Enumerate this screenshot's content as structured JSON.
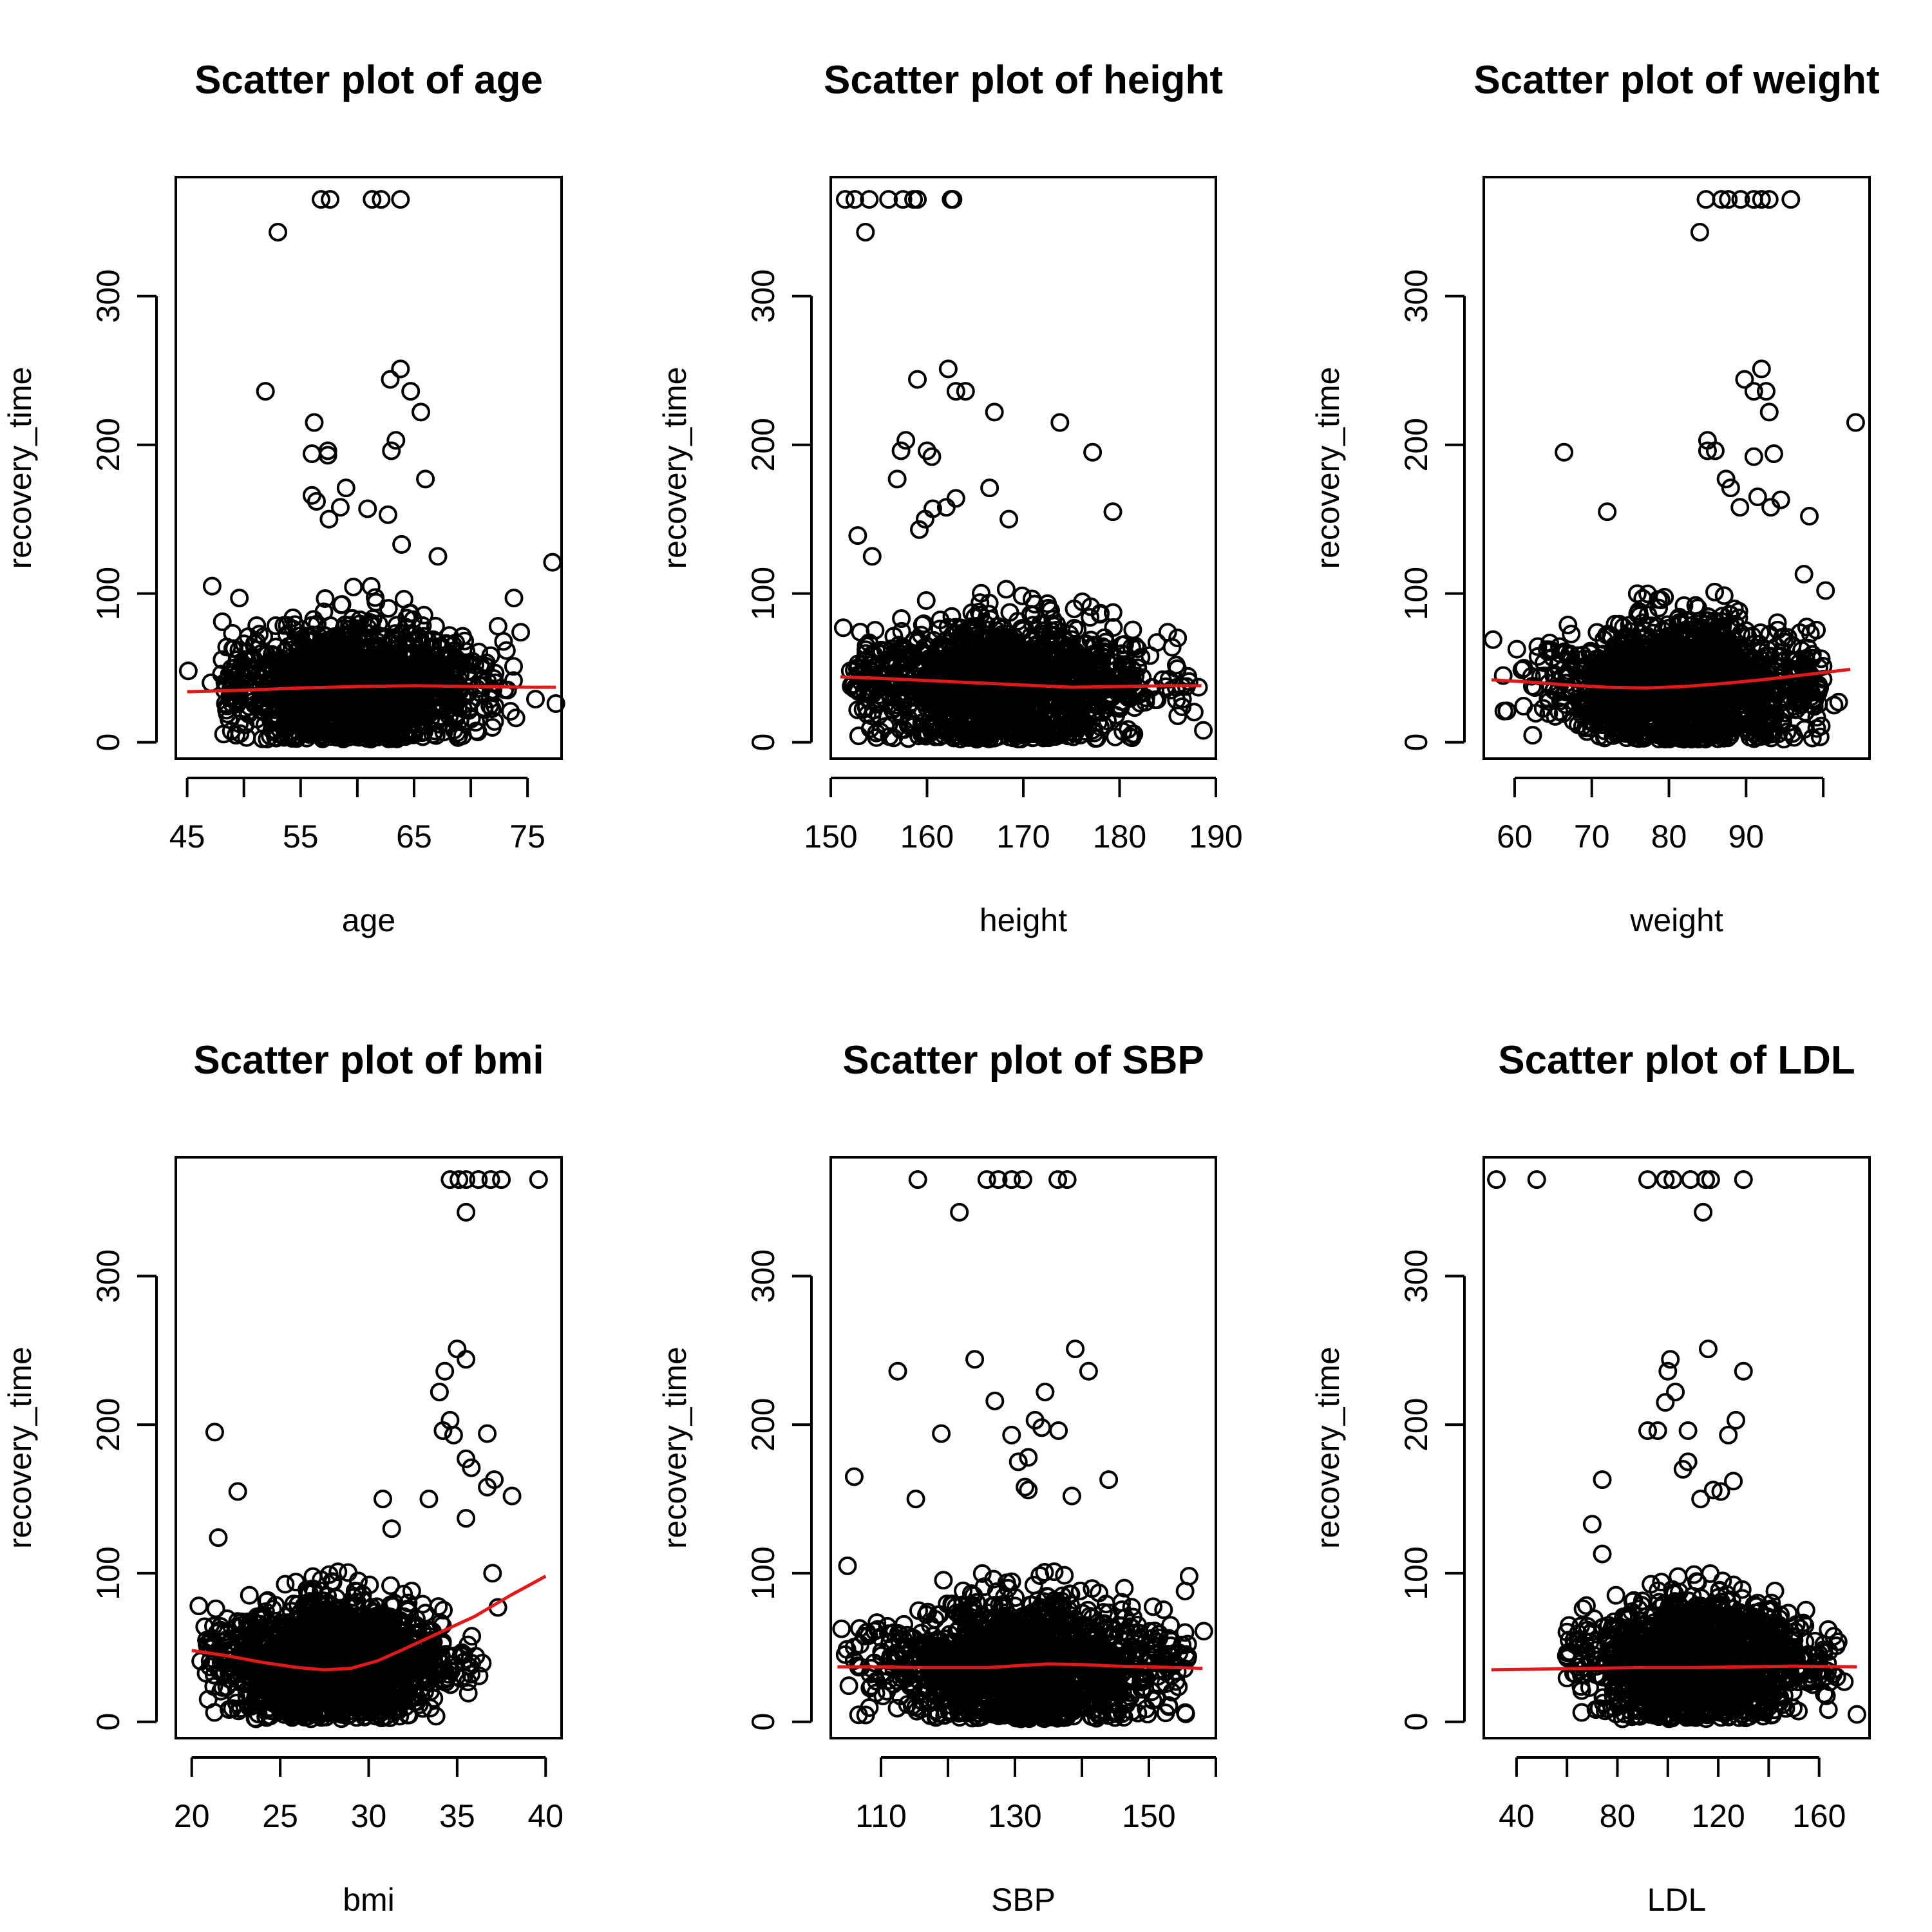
{
  "colors": {
    "points": "#000000",
    "smoother": "#e0191b",
    "frame": "#000000",
    "background": "#ffffff"
  },
  "chart_data": [
    {
      "type": "scatter",
      "title": "Scatter plot of age",
      "xlabel": "age",
      "ylabel": "recovery_time",
      "xlim": [
        44,
        78
      ],
      "ylim": [
        -11,
        380
      ],
      "xticks": [
        45,
        50,
        55,
        60,
        65,
        70,
        75
      ],
      "xticklabels": [
        "45",
        "",
        "55",
        "",
        "65",
        "",
        "75"
      ],
      "yticks": [
        0,
        100,
        200,
        300
      ],
      "yticklabels": [
        "0",
        "100",
        "200",
        "300"
      ],
      "outliers": [
        [
          53,
          343
        ],
        [
          56.8,
          365
        ],
        [
          57.6,
          365
        ],
        [
          61.3,
          365
        ],
        [
          62.1,
          365
        ],
        [
          63.8,
          365
        ],
        [
          51.9,
          236
        ],
        [
          62.9,
          244
        ],
        [
          63.8,
          251
        ],
        [
          64.7,
          236
        ],
        [
          65.6,
          222
        ],
        [
          63.4,
          203
        ],
        [
          63.0,
          196
        ],
        [
          66.0,
          177
        ],
        [
          56.2,
          215
        ],
        [
          56.0,
          194
        ],
        [
          57.4,
          196
        ],
        [
          57.4,
          193
        ],
        [
          56.0,
          166
        ],
        [
          56.4,
          162
        ],
        [
          59.0,
          171
        ],
        [
          60.9,
          157
        ],
        [
          62.7,
          153
        ],
        [
          57.5,
          150
        ],
        [
          58.5,
          158
        ],
        [
          63.9,
          133
        ],
        [
          77.2,
          121
        ],
        [
          67.1,
          125
        ],
        [
          49.6,
          97
        ],
        [
          48.1,
          81
        ],
        [
          47.2,
          105
        ],
        [
          73.8,
          97
        ],
        [
          74.4,
          74
        ],
        [
          72.4,
          78
        ],
        [
          71.7,
          29
        ],
        [
          71.9,
          10
        ],
        [
          72.1,
          14
        ],
        [
          75.7,
          29
        ],
        [
          77.5,
          26
        ],
        [
          47.1,
          40
        ],
        [
          45.1,
          48
        ]
      ],
      "cloud": {
        "x": [
          48,
          74
        ],
        "y_center": 38,
        "y_spread": [
          2,
          110
        ],
        "n": 1400,
        "x_peak": 60
      },
      "smoother": {
        "x": [
          45,
          50,
          55,
          60,
          65,
          70,
          75,
          77.5
        ],
        "y": [
          34,
          35,
          36.5,
          37.5,
          38,
          37.5,
          37,
          37
        ]
      }
    },
    {
      "type": "scatter",
      "title": "Scatter plot of height",
      "xlabel": "height",
      "ylabel": "recovery_time",
      "xlim": [
        150,
        190
      ],
      "ylim": [
        -11,
        380
      ],
      "xticks": [
        150,
        160,
        170,
        180,
        190
      ],
      "xticklabels": [
        "150",
        "160",
        "170",
        "180",
        "190"
      ],
      "yticks": [
        0,
        100,
        200,
        300
      ],
      "yticklabels": [
        "0",
        "100",
        "200",
        "300"
      ],
      "outliers": [
        [
          151.5,
          365
        ],
        [
          152.5,
          365
        ],
        [
          154.0,
          365
        ],
        [
          156.0,
          365
        ],
        [
          157.5,
          365
        ],
        [
          158.6,
          365
        ],
        [
          159.0,
          365
        ],
        [
          162.5,
          365
        ],
        [
          162.7,
          365
        ],
        [
          153.6,
          343
        ],
        [
          162.2,
          251
        ],
        [
          159.0,
          244
        ],
        [
          163.0,
          236
        ],
        [
          164.0,
          236
        ],
        [
          167.0,
          222
        ],
        [
          173.8,
          215
        ],
        [
          157.8,
          203
        ],
        [
          157.3,
          196
        ],
        [
          160.0,
          196
        ],
        [
          160.5,
          192
        ],
        [
          166.5,
          171
        ],
        [
          177.2,
          195
        ],
        [
          156.9,
          177
        ],
        [
          162.0,
          158
        ],
        [
          163.0,
          164
        ],
        [
          160.6,
          157
        ],
        [
          159.8,
          150
        ],
        [
          159.2,
          143
        ],
        [
          179.3,
          155
        ],
        [
          168.5,
          150
        ],
        [
          152.8,
          139
        ],
        [
          154.3,
          125
        ],
        [
          151.3,
          77
        ],
        [
          188.7,
          8
        ],
        [
          188.2,
          37
        ],
        [
          181.3,
          3
        ],
        [
          185.0,
          74
        ]
      ],
      "cloud": {
        "x": [
          152,
          188
        ],
        "y_center": 38,
        "y_spread": [
          2,
          118
        ],
        "n": 1400,
        "x_peak": 168
      },
      "smoother": {
        "x": [
          151,
          155,
          160,
          165,
          170,
          175,
          180,
          185,
          188.5
        ],
        "y": [
          44,
          43,
          41.5,
          40,
          38.5,
          37,
          37.5,
          38,
          38
        ]
      }
    },
    {
      "type": "scatter",
      "title": "Scatter plot of weight",
      "xlabel": "weight",
      "ylabel": "recovery_time",
      "xlim": [
        56,
        106
      ],
      "ylim": [
        -11,
        380
      ],
      "xticks": [
        60,
        70,
        80,
        90,
        100
      ],
      "xticklabels": [
        "60",
        "70",
        "80",
        "90",
        ""
      ],
      "yticks": [
        0,
        100,
        200,
        300
      ],
      "yticklabels": [
        "0",
        "100",
        "200",
        "300"
      ],
      "outliers": [
        [
          84.8,
          365
        ],
        [
          86.8,
          365
        ],
        [
          87.7,
          365
        ],
        [
          89.3,
          365
        ],
        [
          91.0,
          365
        ],
        [
          92.0,
          365
        ],
        [
          93.0,
          365
        ],
        [
          95.8,
          365
        ],
        [
          84.0,
          343
        ],
        [
          92.0,
          251
        ],
        [
          89.8,
          244
        ],
        [
          91.0,
          236
        ],
        [
          92.6,
          236
        ],
        [
          93.0,
          222
        ],
        [
          104.2,
          215
        ],
        [
          66.4,
          195
        ],
        [
          85.0,
          203
        ],
        [
          85.0,
          196
        ],
        [
          86.0,
          196
        ],
        [
          91.0,
          192
        ],
        [
          93.6,
          194
        ],
        [
          87.4,
          177
        ],
        [
          88.0,
          171
        ],
        [
          91.5,
          165
        ],
        [
          94.5,
          163
        ],
        [
          93.2,
          158
        ],
        [
          89.2,
          158
        ],
        [
          98.2,
          152
        ],
        [
          72.0,
          155
        ],
        [
          97.5,
          113
        ],
        [
          100.3,
          102
        ],
        [
          57.2,
          69
        ],
        [
          58.6,
          21
        ],
        [
          102.0,
          27
        ],
        [
          101.4,
          25
        ]
      ],
      "cloud": {
        "x": [
          58,
          100
        ],
        "y_center": 38,
        "y_spread": [
          2,
          118
        ],
        "n": 1400,
        "x_peak": 82
      },
      "smoother": {
        "x": [
          57,
          62,
          67,
          72,
          77,
          82,
          87,
          92,
          97,
          103.5
        ],
        "y": [
          42,
          40.5,
          38.5,
          37,
          36.5,
          37.5,
          39.5,
          42,
          45,
          49
        ]
      }
    },
    {
      "type": "scatter",
      "title": "Scatter plot of bmi",
      "xlabel": "bmi",
      "ylabel": "recovery_time",
      "xlim": [
        19.1,
        40.9
      ],
      "ylim": [
        -11,
        380
      ],
      "xticks": [
        20,
        25,
        30,
        35,
        40
      ],
      "xticklabels": [
        "20",
        "25",
        "30",
        "35",
        "40"
      ],
      "yticks": [
        0,
        100,
        200,
        300
      ],
      "yticklabels": [
        "0",
        "100",
        "200",
        "300"
      ],
      "outliers": [
        [
          34.6,
          365
        ],
        [
          35.1,
          365
        ],
        [
          35.5,
          365
        ],
        [
          36.2,
          365
        ],
        [
          36.9,
          365
        ],
        [
          37.5,
          365
        ],
        [
          39.6,
          365
        ],
        [
          35.5,
          343
        ],
        [
          35.0,
          251
        ],
        [
          35.5,
          244
        ],
        [
          34.3,
          236
        ],
        [
          34.0,
          222
        ],
        [
          34.6,
          203
        ],
        [
          34.2,
          196
        ],
        [
          36.7,
          194
        ],
        [
          34.8,
          193
        ],
        [
          35.5,
          177
        ],
        [
          35.8,
          171
        ],
        [
          37.1,
          163
        ],
        [
          36.7,
          158
        ],
        [
          38.1,
          152
        ],
        [
          35.5,
          137
        ],
        [
          37.0,
          100
        ],
        [
          37.3,
          77
        ],
        [
          21.3,
          195
        ],
        [
          22.6,
          155
        ],
        [
          21.5,
          124
        ],
        [
          20.4,
          78
        ],
        [
          30.8,
          150
        ],
        [
          31.3,
          130
        ],
        [
          33.4,
          150
        ]
      ],
      "cloud": {
        "x": [
          20.5,
          36.5
        ],
        "y_center": 40,
        "y_spread": [
          2,
          115
        ],
        "n": 1400,
        "x_peak": 28
      },
      "smoother": {
        "x": [
          20,
          22,
          24,
          26,
          27.5,
          29,
          30.5,
          32,
          34,
          36,
          38,
          40
        ],
        "y": [
          48,
          44.5,
          40,
          36.5,
          35,
          36,
          41,
          49,
          60,
          71,
          85,
          98
        ]
      }
    },
    {
      "type": "scatter",
      "title": "Scatter plot of SBP",
      "xlabel": "SBP",
      "ylabel": "recovery_time",
      "xlim": [
        102.5,
        160
      ],
      "ylim": [
        -11,
        380
      ],
      "xticks": [
        110,
        120,
        130,
        140,
        150,
        160
      ],
      "xticklabels": [
        "110",
        "",
        "130",
        "",
        "150",
        ""
      ],
      "yticks": [
        0,
        100,
        200,
        300
      ],
      "yticklabels": [
        "0",
        "100",
        "200",
        "300"
      ],
      "outliers": [
        [
          115.5,
          365
        ],
        [
          125.8,
          365
        ],
        [
          127.5,
          365
        ],
        [
          129.5,
          365
        ],
        [
          131.2,
          365
        ],
        [
          136.4,
          365
        ],
        [
          137.8,
          365
        ],
        [
          121.7,
          343
        ],
        [
          139.0,
          251
        ],
        [
          124.0,
          244
        ],
        [
          112.5,
          236
        ],
        [
          141.0,
          236
        ],
        [
          134.5,
          222
        ],
        [
          127.0,
          216
        ],
        [
          133.0,
          203
        ],
        [
          134.0,
          198
        ],
        [
          136.5,
          196
        ],
        [
          129.5,
          193
        ],
        [
          119.0,
          194
        ],
        [
          130.5,
          175
        ],
        [
          132.0,
          178
        ],
        [
          131.5,
          158
        ],
        [
          132.0,
          156
        ],
        [
          144.0,
          163
        ],
        [
          138.5,
          152
        ],
        [
          115.2,
          150
        ],
        [
          106.0,
          165
        ],
        [
          105.0,
          105
        ],
        [
          158.2,
          61
        ],
        [
          156.0,
          98
        ],
        [
          155.4,
          88
        ],
        [
          152.5,
          6
        ]
      ],
      "cloud": {
        "x": [
          104,
          156
        ],
        "y_center": 38,
        "y_spread": [
          2,
          120
        ],
        "n": 1400,
        "x_peak": 131
      },
      "smoother": {
        "x": [
          103.5,
          110,
          115,
          120,
          126,
          131,
          135,
          140,
          145,
          150,
          158
        ],
        "y": [
          37,
          37,
          36.5,
          36.5,
          36.5,
          38,
          39,
          38.5,
          37.5,
          37,
          36
        ]
      }
    },
    {
      "type": "scatter",
      "title": "Scatter plot of LDL",
      "xlabel": "LDL",
      "ylabel": "recovery_time",
      "xlim": [
        27,
        180
      ],
      "ylim": [
        -11,
        380
      ],
      "xticks": [
        40,
        60,
        80,
        100,
        120,
        140,
        160
      ],
      "xticklabels": [
        "40",
        "",
        "80",
        "",
        "120",
        "",
        "160"
      ],
      "yticks": [
        0,
        100,
        200,
        300
      ],
      "yticklabels": [
        "0",
        "100",
        "200",
        "300"
      ],
      "outliers": [
        [
          32,
          365
        ],
        [
          48,
          365
        ],
        [
          92,
          365
        ],
        [
          99,
          365
        ],
        [
          102,
          365
        ],
        [
          109,
          365
        ],
        [
          115,
          365
        ],
        [
          117,
          365
        ],
        [
          130,
          365
        ],
        [
          114,
          343
        ],
        [
          116,
          251
        ],
        [
          101,
          244
        ],
        [
          100,
          236
        ],
        [
          130,
          236
        ],
        [
          103,
          222
        ],
        [
          99,
          215
        ],
        [
          92,
          196
        ],
        [
          96,
          196
        ],
        [
          127,
          203
        ],
        [
          124,
          193
        ],
        [
          108,
          196
        ],
        [
          108,
          175
        ],
        [
          106,
          170
        ],
        [
          126,
          162
        ],
        [
          118,
          156
        ],
        [
          121,
          155
        ],
        [
          113,
          150
        ],
        [
          74,
          163
        ],
        [
          70,
          133
        ],
        [
          74,
          113
        ],
        [
          167,
          30
        ],
        [
          175,
          5
        ],
        [
          170,
          27
        ]
      ],
      "cloud": {
        "x": [
          58,
          168
        ],
        "y_center": 40,
        "y_spread": [
          2,
          115
        ],
        "n": 1400,
        "x_peak": 112
      },
      "smoother": {
        "x": [
          30,
          50,
          70,
          90,
          110,
          130,
          150,
          175
        ],
        "y": [
          35,
          35.5,
          36,
          36.5,
          36.5,
          37,
          37.5,
          37
        ]
      }
    }
  ]
}
